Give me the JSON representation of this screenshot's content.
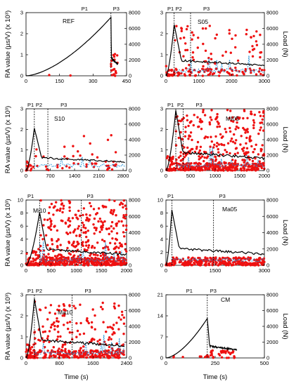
{
  "figure": {
    "left_axis_label": "RA value (µs/V) (x 10³)",
    "right_axis_label": "Load (N)",
    "x_axis_label": "Time (s)",
    "colors": {
      "ra": "#ee1111",
      "load": "#000000",
      "moving": "#1f8fd6",
      "phase": "#000000"
    }
  },
  "chart_data": [
    {
      "type": "scatter",
      "title": "REF",
      "phase_labels": [
        "P1",
        "P3"
      ],
      "xticks": [
        0,
        150,
        300,
        450
      ],
      "xlim": [
        0,
        450
      ],
      "yticks": [
        0,
        1,
        2,
        3
      ],
      "ylim": [
        0,
        3
      ],
      "y2ticks": [
        0,
        2000,
        4000,
        6000,
        8000
      ],
      "y2lim": [
        0,
        8000
      ],
      "phase_lines": [
        380
      ],
      "peak": {
        "t": 380,
        "load": 7400
      },
      "end": 410,
      "density": 20,
      "ra_scale": 0.35,
      "moving": false
    },
    {
      "type": "scatter",
      "title": "S05",
      "phase_labels": [
        "P1",
        "P2",
        "P3"
      ],
      "xticks": [
        0,
        1000,
        2000,
        3000
      ],
      "xlim": [
        0,
        3000
      ],
      "yticks": [
        0,
        1,
        2,
        3
      ],
      "ylim": [
        0,
        3
      ],
      "y2ticks": [
        0,
        2000,
        4000,
        6000,
        8000
      ],
      "y2lim": [
        0,
        8000
      ],
      "phase_lines": [
        250,
        750
      ],
      "peak": {
        "t": 250,
        "load": 6500
      },
      "end": 3000,
      "density": 170,
      "ra_scale": 0.8,
      "moving": true
    },
    {
      "type": "scatter",
      "title": "S10",
      "phase_labels": [
        "P1",
        "P2",
        "P3"
      ],
      "xticks": [
        0,
        700,
        1400,
        2100,
        2800
      ],
      "xlim": [
        0,
        2900
      ],
      "yticks": [
        0,
        1,
        2,
        3
      ],
      "ylim": [
        0,
        3
      ],
      "y2ticks": [
        0,
        2000,
        4000,
        6000,
        8000
      ],
      "y2lim": [
        0,
        8000
      ],
      "phase_lines": [
        240,
        630
      ],
      "peak": {
        "t": 240,
        "load": 5500
      },
      "end": 2850,
      "density": 60,
      "ra_scale": 0.6,
      "moving": true
    },
    {
      "type": "scatter",
      "title": "MI05",
      "phase_labels": [
        "P1",
        "P2",
        "P3"
      ],
      "xticks": [
        0,
        500,
        1000,
        1500,
        2000
      ],
      "xlim": [
        0,
        2000
      ],
      "yticks": [
        0,
        1,
        2,
        3
      ],
      "ylim": [
        0,
        3
      ],
      "y2ticks": [
        0,
        2000,
        4000,
        6000,
        8000
      ],
      "y2lim": [
        0,
        8000
      ],
      "phase_lines": [
        200,
        350
      ],
      "peak": {
        "t": 200,
        "load": 7800
      },
      "end": 2000,
      "density": 600,
      "ra_scale": 1.0,
      "moving": true
    },
    {
      "type": "scatter",
      "title": "Mi10",
      "phase_labels": [
        "P1",
        "P3"
      ],
      "xticks": [
        0,
        500,
        1000,
        1500,
        2000
      ],
      "xlim": [
        0,
        2000
      ],
      "yticks": [
        0,
        2,
        4,
        6,
        8,
        10
      ],
      "ylim": [
        0,
        10
      ],
      "y2ticks": [
        0,
        2000,
        4000,
        6000,
        8000
      ],
      "y2lim": [
        0,
        8000
      ],
      "phase_lines": [
        270,
        1100
      ],
      "peak": {
        "t": 270,
        "load": 6500
      },
      "end": 2000,
      "density": 700,
      "ra_scale": 1.0,
      "moving": true
    },
    {
      "type": "scatter",
      "title": "Ma05",
      "phase_labels": [
        "P1",
        "P3"
      ],
      "xticks": [
        0,
        1500,
        3000
      ],
      "xlim": [
        0,
        3000
      ],
      "yticks": [
        0,
        2,
        4,
        6,
        8,
        10
      ],
      "ylim": [
        0,
        10
      ],
      "y2ticks": [
        0,
        2000,
        4000,
        6000,
        8000
      ],
      "y2lim": [
        0,
        8000
      ],
      "phase_lines": [
        180,
        1450
      ],
      "peak": {
        "t": 180,
        "load": 6800
      },
      "end": 3000,
      "density": 350,
      "ra_scale": 0.12,
      "moving": true
    },
    {
      "type": "scatter",
      "title": "Ma10",
      "phase_labels": [
        "P1",
        "P2",
        "P3"
      ],
      "xticks": [
        0,
        800,
        1600,
        2400
      ],
      "xlim": [
        0,
        2400
      ],
      "yticks": [
        0,
        1,
        2,
        3
      ],
      "ylim": [
        0,
        3
      ],
      "y2ticks": [
        0,
        2000,
        4000,
        6000,
        8000
      ],
      "y2lim": [
        0,
        8000
      ],
      "phase_lines": [
        200,
        1100
      ],
      "peak": {
        "t": 200,
        "load": 7500
      },
      "end": 2350,
      "density": 420,
      "ra_scale": 0.9,
      "moving": true
    },
    {
      "type": "scatter",
      "title": "CM",
      "phase_labels": [
        "P1",
        "P3"
      ],
      "xticks": [
        0,
        250,
        500
      ],
      "xlim": [
        0,
        500
      ],
      "yticks": [
        0,
        7,
        14,
        21
      ],
      "ylim": [
        0,
        21
      ],
      "y2ticks": [
        0,
        2000,
        4000,
        6000,
        8000
      ],
      "y2lim": [
        0,
        8000
      ],
      "phase_lines": [
        210
      ],
      "peak": {
        "t": 210,
        "load": 5000
      },
      "end": 360,
      "density": 40,
      "ra_scale": 0.15,
      "moving": false
    }
  ]
}
